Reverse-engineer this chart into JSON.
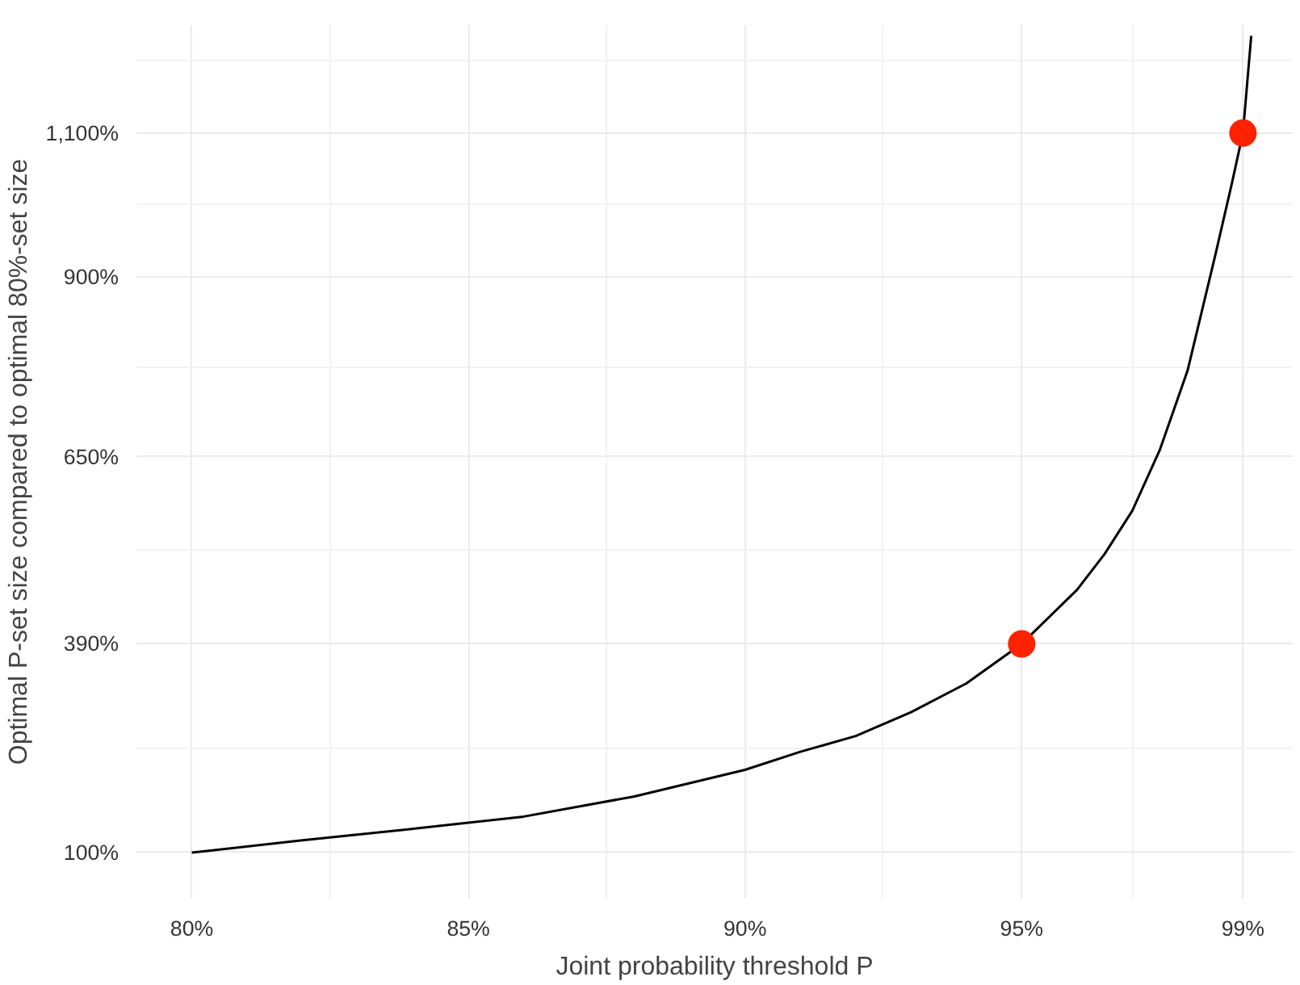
{
  "chart_data": {
    "type": "line",
    "xlabel": "Joint probability threshold P",
    "ylabel": "Optimal P-set size compared to optimal 80%-set size",
    "xlim": [
      79.0,
      99.9
    ],
    "ylim": [
      36,
      1250
    ],
    "xticks": [
      {
        "value": 80,
        "label": "80%"
      },
      {
        "value": 85,
        "label": "85%"
      },
      {
        "value": 90,
        "label": "90%"
      },
      {
        "value": 95,
        "label": "95%"
      },
      {
        "value": 99,
        "label": "99%"
      }
    ],
    "yticks": [
      {
        "value": 100,
        "label": "100%"
      },
      {
        "value": 390,
        "label": "390%"
      },
      {
        "value": 650,
        "label": "650%"
      },
      {
        "value": 900,
        "label": "900%"
      },
      {
        "value": 1100,
        "label": "1,100%"
      }
    ],
    "grid": true,
    "series": [
      {
        "color": "#000000",
        "x": [
          80,
          82,
          84,
          86,
          88,
          90,
          91,
          92,
          93,
          94,
          95,
          96,
          96.5,
          97,
          97.5,
          98,
          98.5,
          98.8,
          99,
          99.15
        ],
        "values": [
          100,
          117,
          133,
          150,
          178,
          215,
          240,
          262,
          295,
          335,
          390,
          465,
          515,
          575,
          660,
          770,
          930,
          1030,
          1100,
          1235
        ]
      },
      {
        "type": "scatter",
        "color": "#ff2200",
        "marker": "circle",
        "x": [
          95,
          99
        ],
        "values": [
          390,
          1100
        ]
      }
    ]
  }
}
